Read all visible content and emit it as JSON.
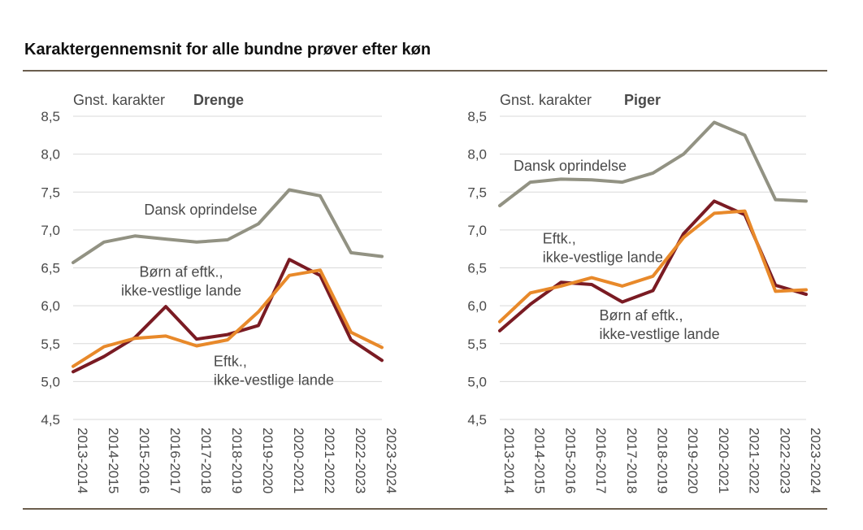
{
  "title": "Karaktergennemsnit for alle bundne prøver efter køn",
  "colors": {
    "dansk": "#929283",
    "born": "#7a1b23",
    "eftk": "#e8892a",
    "grid": "#d9d9d9",
    "text": "#4a4a4a",
    "rule": "#6b5e4e"
  },
  "chart_data": [
    {
      "type": "line",
      "title": "Drenge",
      "ylabel": "Gnst. karakter",
      "ylim": [
        4.5,
        8.5
      ],
      "yticks": [
        "4,5",
        "5,0",
        "5,5",
        "6,0",
        "6,5",
        "7,0",
        "7,5",
        "8,0",
        "8,5"
      ],
      "categories": [
        "2013-2014",
        "2014-2015",
        "2015-2016",
        "2016-2017",
        "2017-2018",
        "2018-2019",
        "2019-2020",
        "2020-2021",
        "2021-2022",
        "2022-2023",
        "2023-2024"
      ],
      "series": [
        {
          "name": "Dansk oprindelse",
          "color_key": "dansk",
          "values": [
            6.57,
            6.84,
            6.92,
            6.88,
            6.84,
            6.87,
            7.08,
            7.53,
            7.45,
            6.7,
            6.65
          ]
        },
        {
          "name": "Børn af eftk., ikke-vestlige lande",
          "color_key": "born",
          "values": [
            5.13,
            5.33,
            5.58,
            5.99,
            5.56,
            5.62,
            5.74,
            6.61,
            6.4,
            5.55,
            5.28
          ]
        },
        {
          "name": "Eftk., ikke-vestlige lande",
          "color_key": "eftk",
          "values": [
            5.2,
            5.46,
            5.57,
            5.6,
            5.47,
            5.55,
            5.92,
            6.4,
            6.47,
            5.65,
            5.45
          ]
        }
      ],
      "annotations": [
        {
          "series": 0,
          "lines": [
            "Dansk oprindelse"
          ],
          "anchor": "start",
          "at_x": 2.3,
          "at_y": 7.2
        },
        {
          "series": 1,
          "lines": [
            "Børn af eftk.,",
            "ikke-vestlige lande"
          ],
          "anchor": "middle",
          "at_x": 3.5,
          "at_y": 6.38
        },
        {
          "series": 2,
          "lines": [
            "Eftk.,",
            "ikke-vestlige lande"
          ],
          "anchor": "start",
          "at_x": 4.55,
          "at_y": 5.2
        }
      ]
    },
    {
      "type": "line",
      "title": "Piger",
      "ylabel": "Gnst. karakter",
      "ylim": [
        4.5,
        8.5
      ],
      "yticks": [
        "4,5",
        "5,0",
        "5,5",
        "6,0",
        "6,5",
        "7,0",
        "7,5",
        "8,0",
        "8,5"
      ],
      "categories": [
        "2013-2014",
        "2014-2015",
        "2015-2016",
        "2016-2017",
        "2017-2018",
        "2018-2019",
        "2019-2020",
        "2020-2021",
        "2021-2022",
        "2022-2023",
        "2023-2024"
      ],
      "series": [
        {
          "name": "Dansk oprindelse",
          "color_key": "dansk",
          "values": [
            7.32,
            7.63,
            7.67,
            7.66,
            7.63,
            7.75,
            8.0,
            8.42,
            8.25,
            7.4,
            7.38
          ]
        },
        {
          "name": "Børn af eftk., ikke-vestlige lande",
          "color_key": "born",
          "values": [
            5.67,
            6.02,
            6.31,
            6.28,
            6.05,
            6.2,
            6.95,
            7.38,
            7.2,
            6.27,
            6.15
          ]
        },
        {
          "name": "Eftk., ikke-vestlige lande",
          "color_key": "eftk",
          "values": [
            5.79,
            6.17,
            6.26,
            6.37,
            6.26,
            6.39,
            6.9,
            7.22,
            7.25,
            6.19,
            6.21
          ]
        }
      ],
      "annotations": [
        {
          "series": 0,
          "lines": [
            "Dansk oprindelse"
          ],
          "anchor": "start",
          "at_x": 0.45,
          "at_y": 7.78
        },
        {
          "series": 2,
          "lines": [
            "Eftk.,",
            "ikke-vestlige lande"
          ],
          "anchor": "start",
          "at_x": 1.4,
          "at_y": 6.82
        },
        {
          "series": 1,
          "lines": [
            "Børn af eftk.,",
            "ikke-vestlige lande"
          ],
          "anchor": "start",
          "at_x": 3.25,
          "at_y": 5.81
        }
      ]
    }
  ]
}
